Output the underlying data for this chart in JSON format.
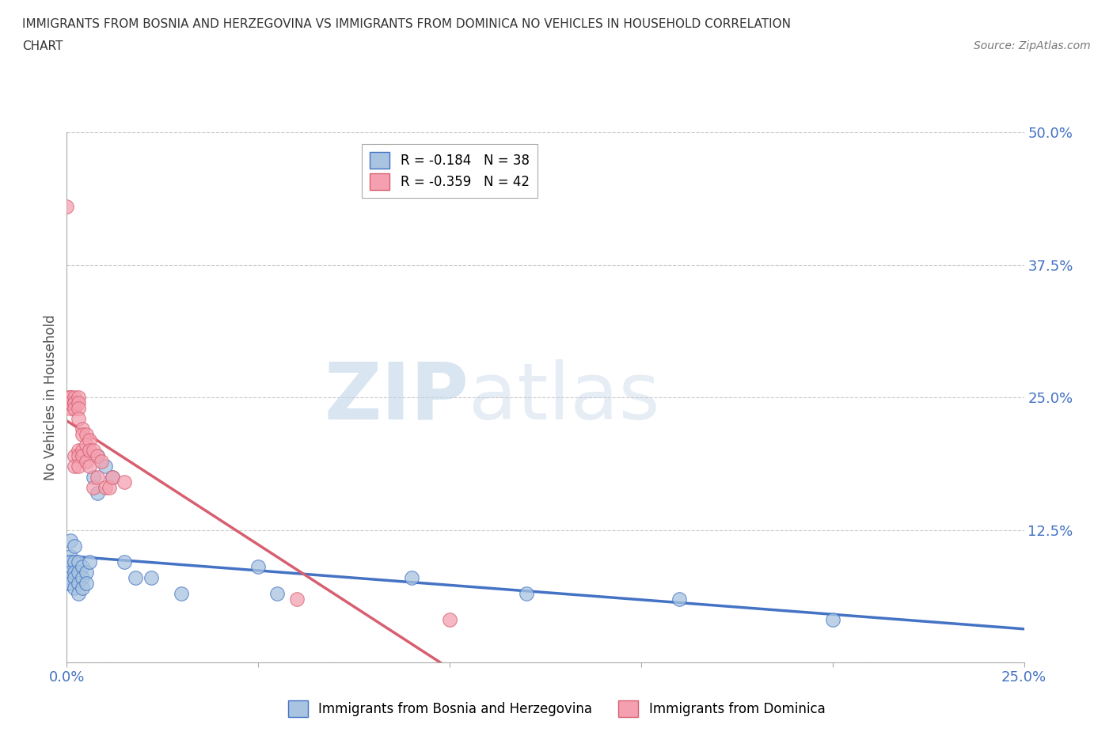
{
  "title_line1": "IMMIGRANTS FROM BOSNIA AND HERZEGOVINA VS IMMIGRANTS FROM DOMINICA NO VEHICLES IN HOUSEHOLD CORRELATION",
  "title_line2": "CHART",
  "source": "Source: ZipAtlas.com",
  "ylabel": "No Vehicles in Household",
  "xlim": [
    0.0,
    0.25
  ],
  "ylim": [
    0.0,
    0.5
  ],
  "xticks": [
    0.0,
    0.05,
    0.1,
    0.15,
    0.2,
    0.25
  ],
  "yticks": [
    0.0,
    0.125,
    0.25,
    0.375,
    0.5
  ],
  "xticklabels": [
    "0.0%",
    "",
    "",
    "",
    "",
    "25.0%"
  ],
  "yticklabels": [
    "",
    "12.5%",
    "25.0%",
    "37.5%",
    "50.0%"
  ],
  "bosnia_R": -0.184,
  "bosnia_N": 38,
  "dominica_R": -0.359,
  "dominica_N": 42,
  "bosnia_color": "#a8c4e0",
  "dominica_color": "#f4a0b0",
  "bosnia_line_color": "#4472c4",
  "dominica_line_color": "#d75f70",
  "watermark_zip": "ZIP",
  "watermark_atlas": "atlas",
  "bosnia_x": [
    0.0,
    0.0,
    0.001,
    0.001,
    0.001,
    0.001,
    0.001,
    0.001,
    0.002,
    0.002,
    0.002,
    0.002,
    0.002,
    0.003,
    0.003,
    0.003,
    0.003,
    0.004,
    0.004,
    0.004,
    0.005,
    0.005,
    0.006,
    0.007,
    0.008,
    0.008,
    0.01,
    0.012,
    0.015,
    0.018,
    0.022,
    0.03,
    0.05,
    0.055,
    0.09,
    0.12,
    0.16,
    0.2
  ],
  "bosnia_y": [
    0.09,
    0.075,
    0.115,
    0.1,
    0.095,
    0.085,
    0.08,
    0.075,
    0.11,
    0.095,
    0.085,
    0.08,
    0.07,
    0.095,
    0.085,
    0.075,
    0.065,
    0.09,
    0.08,
    0.07,
    0.085,
    0.075,
    0.095,
    0.175,
    0.195,
    0.16,
    0.185,
    0.175,
    0.095,
    0.08,
    0.08,
    0.065,
    0.09,
    0.065,
    0.08,
    0.065,
    0.06,
    0.04
  ],
  "dominica_x": [
    0.0,
    0.0,
    0.0,
    0.001,
    0.001,
    0.001,
    0.001,
    0.001,
    0.002,
    0.002,
    0.002,
    0.002,
    0.002,
    0.002,
    0.003,
    0.003,
    0.003,
    0.003,
    0.003,
    0.003,
    0.003,
    0.004,
    0.004,
    0.004,
    0.004,
    0.005,
    0.005,
    0.005,
    0.006,
    0.006,
    0.006,
    0.007,
    0.007,
    0.008,
    0.008,
    0.009,
    0.01,
    0.011,
    0.012,
    0.015,
    0.06,
    0.1
  ],
  "dominica_y": [
    0.43,
    0.25,
    0.245,
    0.25,
    0.24,
    0.245,
    0.25,
    0.245,
    0.25,
    0.245,
    0.245,
    0.24,
    0.195,
    0.185,
    0.25,
    0.245,
    0.24,
    0.23,
    0.2,
    0.195,
    0.185,
    0.22,
    0.215,
    0.2,
    0.195,
    0.215,
    0.205,
    0.19,
    0.21,
    0.2,
    0.185,
    0.2,
    0.165,
    0.195,
    0.175,
    0.19,
    0.165,
    0.165,
    0.175,
    0.17,
    0.06,
    0.04
  ]
}
